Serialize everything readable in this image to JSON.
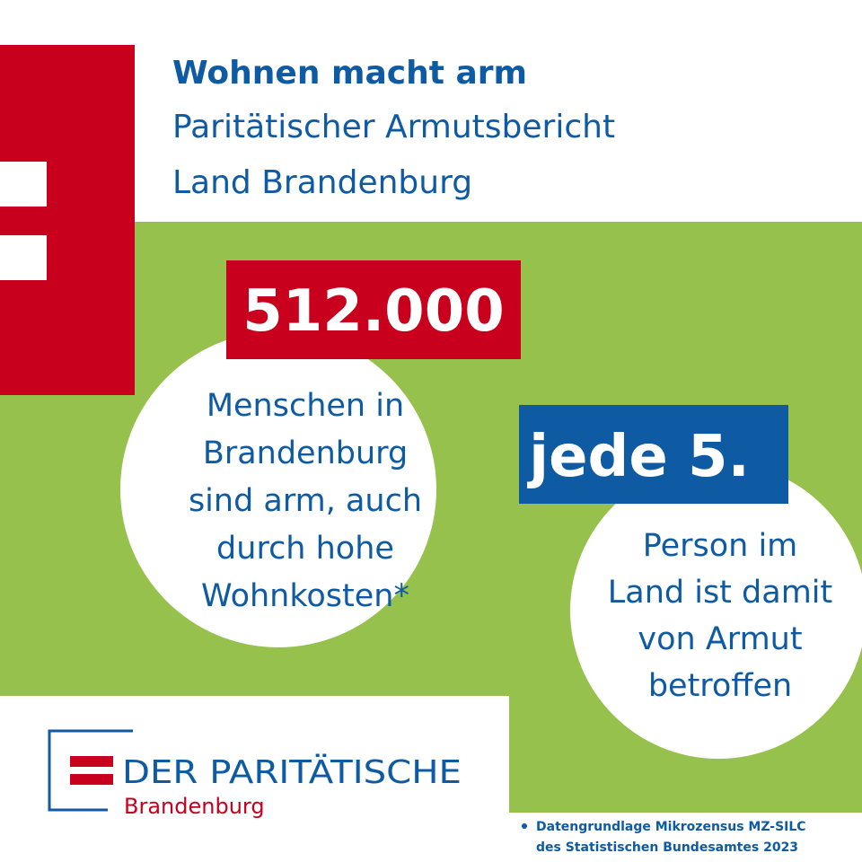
{
  "header": {
    "title": "Wohnen macht arm",
    "subtitle_lines": [
      "Paritätischer Armutsbericht",
      "Land Brandenburg"
    ]
  },
  "stat1": {
    "number": "512.000",
    "text_lines": [
      "Menschen in",
      "Brandenburg",
      "sind arm, auch",
      "durch hohe",
      "Wohnkosten*"
    ]
  },
  "stat2": {
    "number": "jede 5.",
    "text_lines": [
      "Person im",
      "Land ist damit",
      "von Armut",
      "betroffen"
    ]
  },
  "logo": {
    "name": "DER PARITÄTISCHE",
    "region": "Brandenburg"
  },
  "footnote": {
    "lines": [
      "Datengrundlage Mikrozensus MZ-SILC",
      "des Statistischen Bundesamtes 2023"
    ]
  }
}
